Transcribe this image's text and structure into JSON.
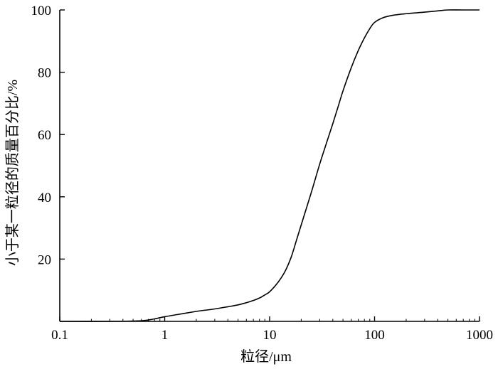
{
  "chart_data": {
    "type": "line",
    "title": "",
    "xlabel": "粒径/μm",
    "ylabel": "小于某一粒径的质量百分比/%",
    "x_scale": "log",
    "xlim": [
      0.1,
      1000
    ],
    "ylim": [
      0,
      100
    ],
    "x_ticks": [
      0.1,
      1,
      10,
      100,
      1000
    ],
    "x_tick_labels": [
      "0.1",
      "1",
      "10",
      "100",
      "1000"
    ],
    "y_ticks": [
      20,
      40,
      60,
      80,
      100
    ],
    "y_tick_labels": [
      "20",
      "40",
      "60",
      "80",
      "100"
    ],
    "grid": false,
    "legend": "none",
    "line_color": "#000000",
    "series": [
      {
        "x": [
          0.1,
          0.3,
          0.6,
          0.8,
          1,
          1.5,
          2,
          3,
          4,
          5,
          6,
          7,
          8,
          9,
          10,
          12,
          14,
          16,
          18,
          20,
          25,
          30,
          35,
          40,
          45,
          50,
          60,
          70,
          80,
          90,
          100,
          120,
          150,
          200,
          300,
          400,
          500,
          700,
          1000
        ],
        "y": [
          0,
          0,
          0.2,
          0.8,
          1.5,
          2.5,
          3.2,
          4.0,
          4.7,
          5.3,
          6.0,
          6.7,
          7.5,
          8.5,
          9.5,
          12.5,
          16.0,
          20.5,
          26.0,
          31.0,
          41.5,
          50.5,
          57.5,
          63.5,
          69.0,
          74.0,
          81.5,
          87.0,
          91.0,
          94.0,
          96.0,
          97.5,
          98.3,
          98.8,
          99.3,
          99.7,
          100,
          100,
          100
        ]
      }
    ]
  }
}
